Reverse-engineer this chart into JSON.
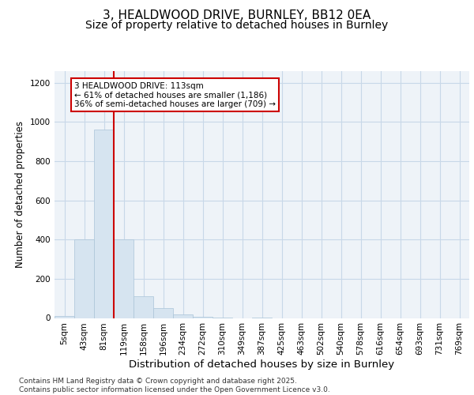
{
  "title": "3, HEALDWOOD DRIVE, BURNLEY, BB12 0EA",
  "subtitle": "Size of property relative to detached houses in Burnley",
  "xlabel": "Distribution of detached houses by size in Burnley",
  "ylabel": "Number of detached properties",
  "bins": [
    "5sqm",
    "43sqm",
    "81sqm",
    "119sqm",
    "158sqm",
    "196sqm",
    "234sqm",
    "272sqm",
    "310sqm",
    "349sqm",
    "387sqm",
    "425sqm",
    "463sqm",
    "502sqm",
    "540sqm",
    "578sqm",
    "616sqm",
    "654sqm",
    "693sqm",
    "731sqm",
    "769sqm"
  ],
  "values": [
    10,
    400,
    960,
    400,
    110,
    50,
    18,
    8,
    2,
    0,
    2,
    0,
    0,
    0,
    0,
    0,
    0,
    0,
    0,
    0,
    0
  ],
  "bar_color": "#d6e4f0",
  "bar_edge_color": "#aac4d8",
  "vline_x_index": 2.5,
  "vline_color": "#cc0000",
  "annotation_text": "3 HEALDWOOD DRIVE: 113sqm\n← 61% of detached houses are smaller (1,186)\n36% of semi-detached houses are larger (709) →",
  "annotation_box_color": "#ffffff",
  "annotation_box_edge_color": "#cc0000",
  "ylim": [
    0,
    1260
  ],
  "yticks": [
    0,
    200,
    400,
    600,
    800,
    1000,
    1200
  ],
  "grid_color": "#c8d8e8",
  "background_color": "#eef3f8",
  "footer": "Contains HM Land Registry data © Crown copyright and database right 2025.\nContains public sector information licensed under the Open Government Licence v3.0.",
  "title_fontsize": 11,
  "subtitle_fontsize": 10,
  "xlabel_fontsize": 9.5,
  "ylabel_fontsize": 8.5,
  "tick_fontsize": 7.5,
  "footer_fontsize": 6.5,
  "ann_fontsize": 7.5
}
